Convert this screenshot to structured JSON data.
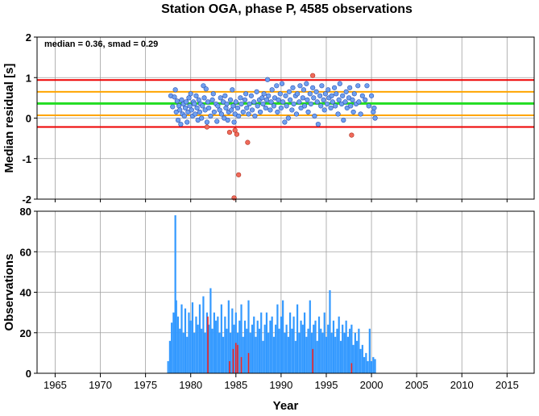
{
  "figure": {
    "title": "Station OGA, phase P, 4585 observations"
  },
  "chart_data": [
    {
      "type": "scatter",
      "ylabel": "Median residual [s]",
      "annotation": "median = 0.36, smad = 0.29",
      "xlim": [
        1963,
        2018
      ],
      "ylim": [
        -2,
        2
      ],
      "grid": true,
      "xticks": [
        1965,
        1970,
        1975,
        1980,
        1985,
        1990,
        1995,
        2000,
        2005,
        2010,
        2015
      ],
      "yticks": [
        -2,
        -1,
        0,
        1,
        2
      ],
      "hlines": [
        {
          "y": 0.36,
          "color": "#22dd22"
        },
        {
          "y": 0.65,
          "color": "#ffa500"
        },
        {
          "y": 0.07,
          "color": "#ffa500"
        },
        {
          "y": 0.94,
          "color": "#ee0000"
        },
        {
          "y": -0.22,
          "color": "#ee0000"
        }
      ],
      "series": [
        {
          "color": "#6fa0f0",
          "points": [
            [
              1977.8,
              0.55
            ],
            [
              1978.0,
              0.28
            ],
            [
              1978.2,
              0.52
            ],
            [
              1978.3,
              0.7
            ],
            [
              1978.4,
              0.15
            ],
            [
              1978.5,
              0.42
            ],
            [
              1978.6,
              -0.05
            ],
            [
              1978.7,
              0.3
            ],
            [
              1978.8,
              0.2
            ],
            [
              1978.9,
              -0.15
            ],
            [
              1979.0,
              0.45
            ],
            [
              1979.1,
              0.1
            ],
            [
              1979.2,
              0.35
            ],
            [
              1979.3,
              0.05
            ],
            [
              1979.4,
              0.25
            ],
            [
              1979.5,
              0.4
            ],
            [
              1979.6,
              -0.1
            ],
            [
              1979.7,
              0.15
            ],
            [
              1979.8,
              0.5
            ],
            [
              1979.9,
              0.3
            ],
            [
              1980.0,
              0.6
            ],
            [
              1980.1,
              0.2
            ],
            [
              1980.2,
              0.05
            ],
            [
              1980.3,
              0.4
            ],
            [
              1980.4,
              0.35
            ],
            [
              1980.5,
              0.1
            ],
            [
              1980.6,
              0.55
            ],
            [
              1980.7,
              0.25
            ],
            [
              1980.8,
              -0.05
            ],
            [
              1980.9,
              0.45
            ],
            [
              1981.0,
              0.15
            ],
            [
              1981.1,
              0.35
            ],
            [
              1981.2,
              0.0
            ],
            [
              1981.3,
              0.3
            ],
            [
              1981.4,
              0.8
            ],
            [
              1981.5,
              0.5
            ],
            [
              1981.6,
              0.2
            ],
            [
              1981.7,
              0.72
            ],
            [
              1981.8,
              -0.1
            ],
            [
              1981.9,
              0.4
            ],
            [
              1982.0,
              0.25
            ],
            [
              1982.2,
              0.05
            ],
            [
              1982.4,
              0.45
            ],
            [
              1982.5,
              0.6
            ],
            [
              1982.6,
              0.15
            ],
            [
              1982.8,
              0.35
            ],
            [
              1982.9,
              -0.08
            ],
            [
              1983.0,
              0.3
            ],
            [
              1983.2,
              0.2
            ],
            [
              1983.3,
              0.5
            ],
            [
              1983.4,
              0.1
            ],
            [
              1983.6,
              0.4
            ],
            [
              1983.7,
              0.0
            ],
            [
              1983.8,
              0.55
            ],
            [
              1983.9,
              0.25
            ],
            [
              1984.0,
              0.35
            ],
            [
              1984.1,
              -0.05
            ],
            [
              1984.2,
              0.15
            ],
            [
              1984.4,
              0.45
            ],
            [
              1984.5,
              0.2
            ],
            [
              1984.6,
              0.7
            ],
            [
              1984.7,
              0.3
            ],
            [
              1984.8,
              -0.1
            ],
            [
              1984.9,
              0.1
            ],
            [
              1985.0,
              0.4
            ],
            [
              1985.2,
              0.25
            ],
            [
              1985.3,
              0.05
            ],
            [
              1985.5,
              0.5
            ],
            [
              1985.6,
              0.35
            ],
            [
              1985.8,
              0.15
            ],
            [
              1986.0,
              0.45
            ],
            [
              1986.1,
              0.6
            ],
            [
              1986.2,
              0.25
            ],
            [
              1986.4,
              0.1
            ],
            [
              1986.5,
              0.35
            ],
            [
              1986.7,
              0.55
            ],
            [
              1986.8,
              0.2
            ],
            [
              1987.0,
              0.4
            ],
            [
              1987.1,
              0.05
            ],
            [
              1987.3,
              0.65
            ],
            [
              1987.4,
              0.3
            ],
            [
              1987.6,
              0.45
            ],
            [
              1987.7,
              0.15
            ],
            [
              1987.9,
              0.5
            ],
            [
              1988.0,
              0.35
            ],
            [
              1988.1,
              0.6
            ],
            [
              1988.3,
              0.25
            ],
            [
              1988.4,
              0.45
            ],
            [
              1988.5,
              0.95
            ],
            [
              1988.6,
              0.55
            ],
            [
              1988.8,
              0.2
            ],
            [
              1988.9,
              0.4
            ],
            [
              1989.0,
              0.7
            ],
            [
              1989.2,
              0.3
            ],
            [
              1989.3,
              0.5
            ],
            [
              1989.5,
              0.8
            ],
            [
              1989.6,
              0.15
            ],
            [
              1989.7,
              0.45
            ],
            [
              1989.9,
              0.6
            ],
            [
              1990.0,
              0.25
            ],
            [
              1990.1,
              0.85
            ],
            [
              1990.2,
              0.4
            ],
            [
              1990.4,
              -0.1
            ],
            [
              1990.5,
              0.55
            ],
            [
              1990.6,
              0.3
            ],
            [
              1990.8,
              0.0
            ],
            [
              1990.9,
              0.65
            ],
            [
              1991.0,
              0.45
            ],
            [
              1991.2,
              0.2
            ],
            [
              1991.3,
              0.75
            ],
            [
              1991.4,
              0.35
            ],
            [
              1991.6,
              0.55
            ],
            [
              1991.7,
              0.1
            ],
            [
              1991.8,
              0.6
            ],
            [
              1992.0,
              0.4
            ],
            [
              1992.1,
              0.8
            ],
            [
              1992.2,
              0.25
            ],
            [
              1992.4,
              0.5
            ],
            [
              1992.5,
              0.7
            ],
            [
              1992.6,
              0.3
            ],
            [
              1992.8,
              0.85
            ],
            [
              1992.9,
              0.45
            ],
            [
              1993.0,
              0.15
            ],
            [
              1993.2,
              0.6
            ],
            [
              1993.3,
              0.35
            ],
            [
              1993.5,
              0.75
            ],
            [
              1993.6,
              0.5
            ],
            [
              1993.7,
              0.05
            ],
            [
              1993.9,
              0.65
            ],
            [
              1994.0,
              0.4
            ],
            [
              1994.1,
              -0.15
            ],
            [
              1994.3,
              0.55
            ],
            [
              1994.4,
              0.3
            ],
            [
              1994.5,
              0.8
            ],
            [
              1994.7,
              0.45
            ],
            [
              1994.8,
              0.2
            ],
            [
              1994.9,
              0.6
            ],
            [
              1995.1,
              0.35
            ],
            [
              1995.2,
              0.7
            ],
            [
              1995.3,
              0.5
            ],
            [
              1995.5,
              0.25
            ],
            [
              1995.6,
              0.55
            ],
            [
              1995.7,
              0.4
            ],
            [
              1995.9,
              0.75
            ],
            [
              1996.0,
              0.3
            ],
            [
              1996.1,
              0.6
            ],
            [
              1996.3,
              0.1
            ],
            [
              1996.4,
              0.45
            ],
            [
              1996.5,
              0.85
            ],
            [
              1996.7,
              0.35
            ],
            [
              1996.8,
              0.55
            ],
            [
              1996.9,
              -0.05
            ],
            [
              1997.1,
              0.4
            ],
            [
              1997.2,
              0.65
            ],
            [
              1997.3,
              0.25
            ],
            [
              1997.5,
              0.5
            ],
            [
              1997.6,
              0.75
            ],
            [
              1997.7,
              0.3
            ],
            [
              1997.9,
              0.45
            ],
            [
              1998.0,
              0.15
            ],
            [
              1998.1,
              0.6
            ],
            [
              1998.3,
              0.35
            ],
            [
              1998.5,
              0.8
            ],
            [
              1998.6,
              0.4
            ],
            [
              1998.8,
              0.1
            ],
            [
              1999.0,
              0.55
            ],
            [
              1999.3,
              0.45
            ],
            [
              1999.5,
              0.8
            ],
            [
              1999.7,
              0.3
            ],
            [
              2000.0,
              0.55
            ],
            [
              2000.2,
              0.15
            ],
            [
              2000.3,
              0.25
            ],
            [
              2000.4,
              0.0
            ]
          ]
        },
        {
          "color": "#f06a5a",
          "points": [
            [
              1993.5,
              1.05
            ],
            [
              1981.8,
              -0.22
            ],
            [
              1984.3,
              -0.35
            ],
            [
              1984.9,
              -0.3
            ],
            [
              1985.1,
              -0.4
            ],
            [
              1986.3,
              -0.6
            ],
            [
              1997.8,
              -0.42
            ],
            [
              1985.3,
              -1.4
            ],
            [
              1984.8,
              -1.97
            ]
          ]
        }
      ]
    },
    {
      "type": "bar",
      "xlabel": "Year",
      "ylabel": "Observations",
      "xlim": [
        1963,
        2018
      ],
      "ylim": [
        0,
        80
      ],
      "grid": true,
      "xticks": [
        1965,
        1970,
        1975,
        1980,
        1985,
        1990,
        1995,
        2000,
        2005,
        2010,
        2015
      ],
      "yticks": [
        0,
        20,
        40,
        60,
        80
      ],
      "series": [
        {
          "color": "#3399ff",
          "x": [
            1977.5,
            1977.7,
            1977.9,
            1978.1,
            1978.3,
            1978.4,
            1978.6,
            1978.8,
            1979.0,
            1979.2,
            1979.4,
            1979.6,
            1979.8,
            1980.0,
            1980.2,
            1980.4,
            1980.6,
            1980.8,
            1981.0,
            1981.2,
            1981.4,
            1981.6,
            1981.8,
            1982.0,
            1982.2,
            1982.4,
            1982.6,
            1982.8,
            1983.0,
            1983.2,
            1983.4,
            1983.6,
            1983.8,
            1984.0,
            1984.2,
            1984.4,
            1984.6,
            1984.8,
            1985.0,
            1985.2,
            1985.4,
            1985.6,
            1985.8,
            1986.0,
            1986.2,
            1986.4,
            1986.6,
            1986.8,
            1987.0,
            1987.2,
            1987.4,
            1987.6,
            1987.8,
            1988.0,
            1988.2,
            1988.4,
            1988.6,
            1988.8,
            1989.0,
            1989.2,
            1989.4,
            1989.6,
            1989.8,
            1990.0,
            1990.2,
            1990.4,
            1990.6,
            1990.8,
            1991.0,
            1991.2,
            1991.4,
            1991.6,
            1991.8,
            1992.0,
            1992.2,
            1992.4,
            1992.6,
            1992.8,
            1993.0,
            1993.2,
            1993.4,
            1993.6,
            1993.8,
            1994.0,
            1994.2,
            1994.4,
            1994.6,
            1994.8,
            1995.0,
            1995.2,
            1995.4,
            1995.6,
            1995.8,
            1996.0,
            1996.2,
            1996.4,
            1996.6,
            1996.8,
            1997.0,
            1997.2,
            1997.4,
            1997.6,
            1997.8,
            1998.0,
            1998.2,
            1998.4,
            1998.6,
            1998.8,
            1999.0,
            1999.2,
            1999.4,
            1999.6,
            1999.8,
            2000.0,
            2000.2,
            2000.4
          ],
          "values": [
            6,
            16,
            25,
            30,
            78,
            36,
            28,
            22,
            34,
            20,
            32,
            18,
            30,
            26,
            35,
            20,
            28,
            24,
            34,
            22,
            38,
            20,
            30,
            24,
            42,
            22,
            30,
            26,
            28,
            20,
            34,
            18,
            28,
            22,
            36,
            20,
            32,
            24,
            30,
            20,
            26,
            34,
            18,
            26,
            22,
            36,
            20,
            24,
            28,
            18,
            26,
            22,
            30,
            16,
            24,
            30,
            20,
            26,
            28,
            18,
            24,
            34,
            22,
            28,
            36,
            20,
            24,
            18,
            30,
            22,
            28,
            16,
            34,
            20,
            26,
            24,
            30,
            18,
            22,
            36,
            20,
            24,
            26,
            16,
            28,
            22,
            20,
            30,
            18,
            24,
            41,
            20,
            26,
            18,
            22,
            28,
            16,
            24,
            20,
            26,
            18,
            22,
            24,
            14,
            20,
            16,
            22,
            12,
            14,
            8,
            10,
            6,
            22,
            6,
            8,
            7
          ]
        },
        {
          "color": "#ee2222",
          "x": [
            1981.9,
            1984.3,
            1984.7,
            1985.0,
            1985.2,
            1985.6,
            1986.4,
            1993.5,
            1997.8
          ],
          "values": [
            28,
            6,
            12,
            15,
            14,
            8,
            10,
            12,
            5
          ]
        }
      ]
    }
  ]
}
